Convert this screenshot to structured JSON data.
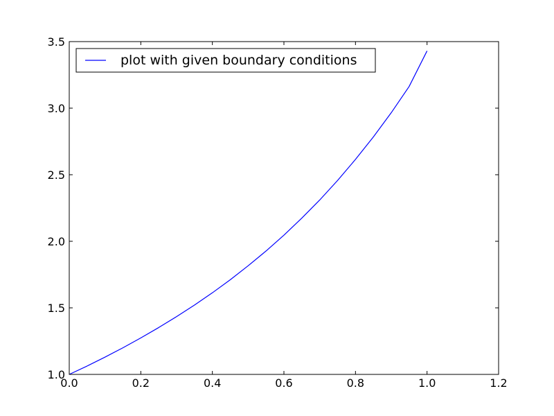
{
  "chart_data": {
    "type": "line",
    "title": "",
    "xlabel": "",
    "ylabel": "",
    "xlim": [
      0.0,
      1.2
    ],
    "ylim": [
      1.0,
      3.5
    ],
    "x_ticks": [
      "0.0",
      "0.2",
      "0.4",
      "0.6",
      "0.8",
      "1.0",
      "1.2"
    ],
    "y_ticks": [
      "1.0",
      "1.5",
      "2.0",
      "2.5",
      "3.0",
      "3.5"
    ],
    "grid": false,
    "legend_position": "upper-left",
    "series": [
      {
        "name": "plot with given boundary conditions",
        "color": "#0000ff",
        "x": [
          0.0,
          0.05,
          0.1,
          0.15,
          0.2,
          0.25,
          0.3,
          0.35,
          0.4,
          0.45,
          0.5,
          0.55,
          0.6,
          0.65,
          0.7,
          0.75,
          0.8,
          0.85,
          0.9,
          0.95,
          1.0
        ],
        "y": [
          1.0,
          1.063,
          1.13,
          1.2,
          1.274,
          1.352,
          1.434,
          1.521,
          1.613,
          1.711,
          1.816,
          1.927,
          2.046,
          2.174,
          2.31,
          2.457,
          2.615,
          2.784,
          2.966,
          3.163,
          3.43
        ]
      }
    ]
  }
}
